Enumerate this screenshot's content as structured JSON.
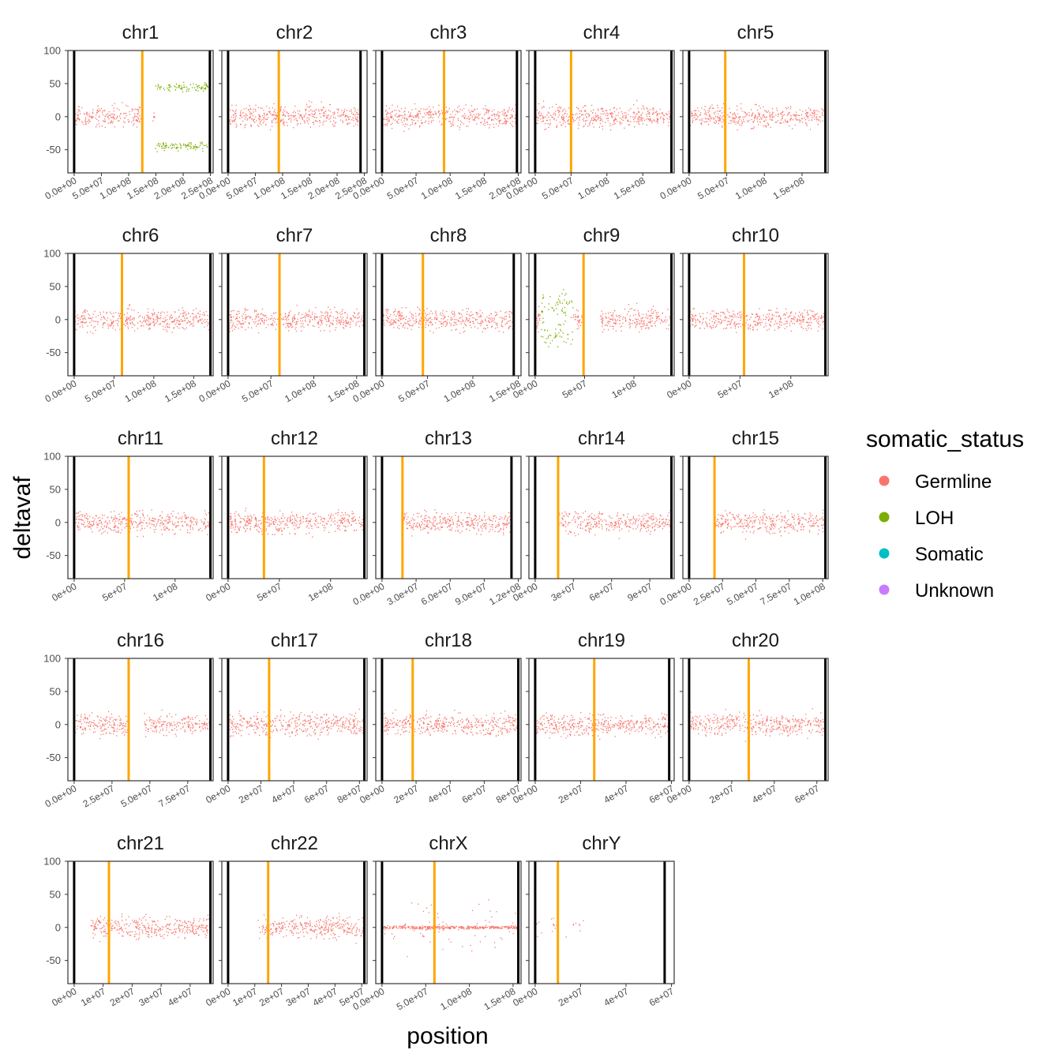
{
  "chart_data": {
    "type": "scatter",
    "xlabel": "position",
    "ylabel": "deltavaf",
    "ylim": [
      -85,
      100
    ],
    "y_ticks": [
      100,
      50,
      0,
      -50
    ],
    "legend": {
      "title": "somatic_status",
      "placement": "right",
      "entries": [
        {
          "name": "Germline",
          "color": "#F8766D"
        },
        {
          "name": "LOH",
          "color": "#7CAE00"
        },
        {
          "name": "Somatic",
          "color": "#00BFC4"
        },
        {
          "name": "Unknown",
          "color": "#C77CFF"
        }
      ]
    },
    "marker_colors": {
      "chromosome_end": "#000000",
      "centromere": "#FFA500"
    },
    "panels": [
      {
        "name": "chr1",
        "length": 249000000,
        "centromere": 125000000,
        "x_ticks": [
          0,
          50000000,
          100000000,
          150000000,
          200000000,
          250000000
        ],
        "x_tick_labels": [
          "0.0e+00",
          "5.0e+07",
          "1.0e+08",
          "1.5e+08",
          "2.0e+08",
          "2.5e+08"
        ],
        "loh": [
          [
            148000000,
            248000000,
            45,
            5
          ]
        ],
        "center_gap_loh": true,
        "gaps": [
          [
            121000000,
            143000000
          ]
        ]
      },
      {
        "name": "chr2",
        "length": 243000000,
        "centromere": 93000000,
        "x_ticks": [
          0,
          50000000,
          100000000,
          150000000,
          200000000,
          250000000
        ],
        "x_tick_labels": [
          "0.0e+00",
          "5.0e+07",
          "1.0e+08",
          "1.5e+08",
          "2.0e+08",
          "2.5e+08"
        ],
        "loh": [],
        "gaps": []
      },
      {
        "name": "chr3",
        "length": 198000000,
        "centromere": 91000000,
        "x_ticks": [
          0,
          50000000,
          100000000,
          150000000,
          200000000
        ],
        "x_tick_labels": [
          "0.0e+00",
          "5.0e+07",
          "1.0e+08",
          "1.5e+08",
          "2.0e+08"
        ],
        "loh": [],
        "gaps": []
      },
      {
        "name": "chr4",
        "length": 190000000,
        "centromere": 50000000,
        "x_ticks": [
          0,
          50000000,
          100000000,
          150000000
        ],
        "x_tick_labels": [
          "0.0e+00",
          "5.0e+07",
          "1.0e+08",
          "1.5e+08"
        ],
        "loh": [],
        "gaps": []
      },
      {
        "name": "chr5",
        "length": 181000000,
        "centromere": 48000000,
        "x_ticks": [
          0,
          50000000,
          100000000,
          150000000
        ],
        "x_tick_labels": [
          "0.0e+00",
          "5.0e+07",
          "1.0e+08",
          "1.5e+08"
        ],
        "loh": [],
        "gaps": []
      },
      {
        "name": "chr6",
        "length": 171000000,
        "centromere": 60000000,
        "x_ticks": [
          0,
          50000000,
          100000000,
          150000000
        ],
        "x_tick_labels": [
          "0.0e+00",
          "5.0e+07",
          "1.0e+08",
          "1.5e+08"
        ],
        "loh": [],
        "gaps": []
      },
      {
        "name": "chr7",
        "length": 159000000,
        "centromere": 60000000,
        "x_ticks": [
          0,
          50000000,
          100000000,
          150000000
        ],
        "x_tick_labels": [
          "0.0e+00",
          "5.0e+07",
          "1.0e+08",
          "1.5e+08"
        ],
        "loh": [],
        "gaps": []
      },
      {
        "name": "chr8",
        "length": 145000000,
        "centromere": 45000000,
        "x_ticks": [
          0,
          50000000,
          100000000,
          150000000
        ],
        "x_tick_labels": [
          "0.0e+00",
          "5.0e+07",
          "1.0e+08",
          "1.5e+08"
        ],
        "loh": [],
        "gaps": []
      },
      {
        "name": "chr9",
        "length": 138000000,
        "centromere": 49000000,
        "x_ticks": [
          0,
          50000000,
          100000000
        ],
        "x_tick_labels": [
          "0e+00",
          "5e+07",
          "1e+08"
        ],
        "loh": [
          [
            5000000,
            38000000,
            20,
            16
          ]
        ],
        "gaps": [
          [
            48000000,
            66000000
          ]
        ]
      },
      {
        "name": "chr10",
        "length": 134000000,
        "centromere": 54000000,
        "x_ticks": [
          0,
          50000000,
          100000000
        ],
        "x_tick_labels": [
          "0e+00",
          "5e+07",
          "1e+08"
        ],
        "loh": [],
        "gaps": []
      },
      {
        "name": "chr11",
        "length": 135000000,
        "centromere": 54000000,
        "x_ticks": [
          0,
          50000000,
          100000000
        ],
        "x_tick_labels": [
          "0e+00",
          "5e+07",
          "1e+08"
        ],
        "loh": [],
        "gaps": []
      },
      {
        "name": "chr12",
        "length": 133000000,
        "centromere": 35000000,
        "x_ticks": [
          0,
          50000000,
          100000000
        ],
        "x_tick_labels": [
          "0e+00",
          "5e+07",
          "1e+08"
        ],
        "loh": [],
        "gaps": []
      },
      {
        "name": "chr13",
        "length": 114000000,
        "centromere": 18000000,
        "x_ticks": [
          0,
          30000000,
          60000000,
          90000000,
          120000000
        ],
        "x_tick_labels": [
          "0.0e+00",
          "3.0e+07",
          "6.0e+07",
          "9.0e+07",
          "1.2e+08"
        ],
        "loh": [],
        "gaps": [
          [
            0,
            18000000
          ]
        ]
      },
      {
        "name": "chr14",
        "length": 107000000,
        "centromere": 18000000,
        "x_ticks": [
          0,
          30000000,
          60000000,
          90000000
        ],
        "x_tick_labels": [
          "0e+00",
          "3e+07",
          "6e+07",
          "9e+07"
        ],
        "loh": [],
        "gaps": [
          [
            0,
            18000000
          ]
        ]
      },
      {
        "name": "chr15",
        "length": 102000000,
        "centromere": 19000000,
        "x_ticks": [
          0,
          25000000,
          50000000,
          75000000,
          100000000
        ],
        "x_tick_labels": [
          "0.0e+00",
          "2.5e+07",
          "5.0e+07",
          "7.5e+07",
          "1.0e+08"
        ],
        "loh": [],
        "gaps": [
          [
            0,
            19000000
          ]
        ]
      },
      {
        "name": "chr16",
        "length": 90000000,
        "centromere": 36000000,
        "x_ticks": [
          0,
          25000000,
          50000000,
          75000000
        ],
        "x_tick_labels": [
          "0.0e+00",
          "2.5e+07",
          "5.0e+07",
          "7.5e+07"
        ],
        "loh": [],
        "gaps": [
          [
            35000000,
            46000000
          ]
        ]
      },
      {
        "name": "chr17",
        "length": 83000000,
        "centromere": 25000000,
        "x_ticks": [
          0,
          20000000,
          40000000,
          60000000,
          80000000
        ],
        "x_tick_labels": [
          "0e+00",
          "2e+07",
          "4e+07",
          "6e+07",
          "8e+07"
        ],
        "loh": [],
        "gaps": []
      },
      {
        "name": "chr18",
        "length": 80000000,
        "centromere": 18000000,
        "x_ticks": [
          0,
          20000000,
          40000000,
          60000000,
          80000000
        ],
        "x_tick_labels": [
          "0e+00",
          "2e+07",
          "4e+07",
          "6e+07",
          "8e+07"
        ],
        "loh": [],
        "gaps": []
      },
      {
        "name": "chr19",
        "length": 59000000,
        "centromere": 26000000,
        "x_ticks": [
          0,
          20000000,
          40000000,
          60000000
        ],
        "x_tick_labels": [
          "0e+00",
          "2e+07",
          "4e+07",
          "6e+07"
        ],
        "loh": [],
        "gaps": []
      },
      {
        "name": "chr20",
        "length": 64000000,
        "centromere": 28000000,
        "x_ticks": [
          0,
          20000000,
          40000000,
          60000000
        ],
        "x_tick_labels": [
          "0e+00",
          "2e+07",
          "4e+07",
          "6e+07"
        ],
        "loh": [],
        "gaps": []
      },
      {
        "name": "chr21",
        "length": 47000000,
        "centromere": 12000000,
        "x_ticks": [
          0,
          10000000,
          20000000,
          30000000,
          40000000
        ],
        "x_tick_labels": [
          "0e+00",
          "1e+07",
          "2e+07",
          "3e+07",
          "4e+07"
        ],
        "loh": [],
        "gaps": [
          [
            0,
            5000000
          ]
        ]
      },
      {
        "name": "chr22",
        "length": 51000000,
        "centromere": 15000000,
        "x_ticks": [
          0,
          10000000,
          20000000,
          30000000,
          40000000,
          50000000
        ],
        "x_tick_labels": [
          "0e+00",
          "1e+07",
          "2e+07",
          "3e+07",
          "4e+07",
          "5e+07"
        ],
        "loh": [],
        "gaps": [
          [
            0,
            11000000
          ]
        ]
      },
      {
        "name": "chrX",
        "length": 156000000,
        "centromere": 60000000,
        "x_ticks": [
          0,
          50000000,
          100000000,
          150000000
        ],
        "x_tick_labels": [
          "0.0e+00",
          "5.0e+07",
          "1.0e+08",
          "1.5e+08"
        ],
        "loh": [],
        "gaps": [],
        "homozygous": true
      },
      {
        "name": "chrY",
        "length": 57000000,
        "centromere": 10000000,
        "x_ticks": [
          0,
          20000000,
          40000000,
          60000000
        ],
        "x_tick_labels": [
          "0e+00",
          "2e+07",
          "4e+07",
          "6e+07"
        ],
        "loh": [],
        "gaps": [
          [
            22000000,
            57000000
          ]
        ],
        "sparse": true
      }
    ]
  }
}
